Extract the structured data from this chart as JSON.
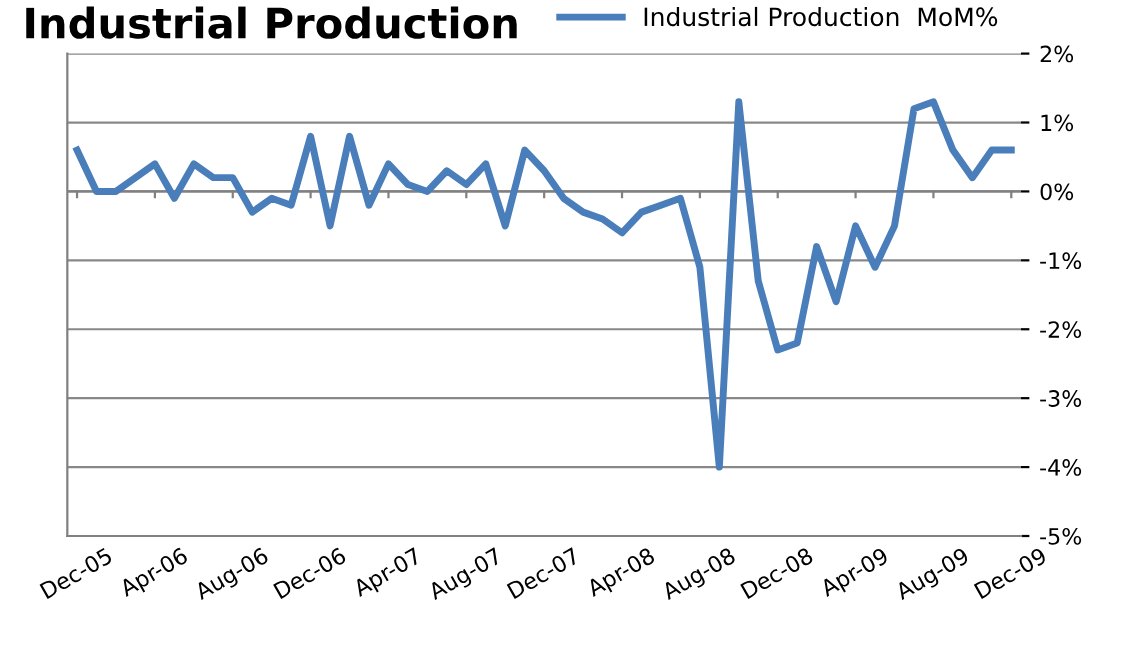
{
  "chart_data": {
    "type": "line",
    "title": "Industrial Production",
    "categories": [
      "Dec-05",
      null,
      null,
      null,
      "Apr-06",
      null,
      null,
      null,
      "Aug-06",
      null,
      null,
      null,
      "Dec-06",
      null,
      null,
      null,
      "Apr-07",
      null,
      null,
      null,
      "Aug-07",
      null,
      null,
      null,
      "Dec-07",
      null,
      null,
      null,
      "Apr-08",
      null,
      null,
      null,
      "Aug-08",
      null,
      null,
      null,
      "Dec-08",
      null,
      null,
      null,
      "Apr-09",
      null,
      null,
      null,
      "Aug-09",
      null,
      null,
      null,
      "Dec-09"
    ],
    "series": [
      {
        "name": "Industrial Production  MoM%",
        "color": "#4a7ebb",
        "values": [
          0.6,
          0.0,
          0.0,
          0.2,
          0.4,
          -0.1,
          0.4,
          0.2,
          0.2,
          -0.3,
          -0.1,
          -0.2,
          0.8,
          -0.5,
          0.8,
          -0.2,
          0.4,
          0.1,
          0.0,
          0.3,
          0.1,
          0.4,
          -0.5,
          0.6,
          0.3,
          -0.1,
          -0.3,
          -0.4,
          -0.6,
          -0.3,
          -0.2,
          -0.1,
          -1.1,
          -4.0,
          1.3,
          -1.3,
          -2.3,
          -2.2,
          -0.8,
          -1.6,
          -0.5,
          -1.1,
          -0.5,
          1.2,
          1.3,
          0.6,
          0.2,
          0.6,
          0.6
        ]
      }
    ],
    "ylim": [
      -5,
      2
    ],
    "yticks": [
      {
        "value": -5,
        "label": "-5%"
      },
      {
        "value": -4,
        "label": "-4%"
      },
      {
        "value": -3,
        "label": "-3%"
      },
      {
        "value": -2,
        "label": "-2%"
      },
      {
        "value": -1,
        "label": "-1%"
      },
      {
        "value": 0,
        "label": "0%"
      },
      {
        "value": 1,
        "label": "1%"
      },
      {
        "value": 2,
        "label": "2%"
      }
    ],
    "grid": "y",
    "legend": "top right",
    "marker": "none",
    "line_style": "solid"
  }
}
